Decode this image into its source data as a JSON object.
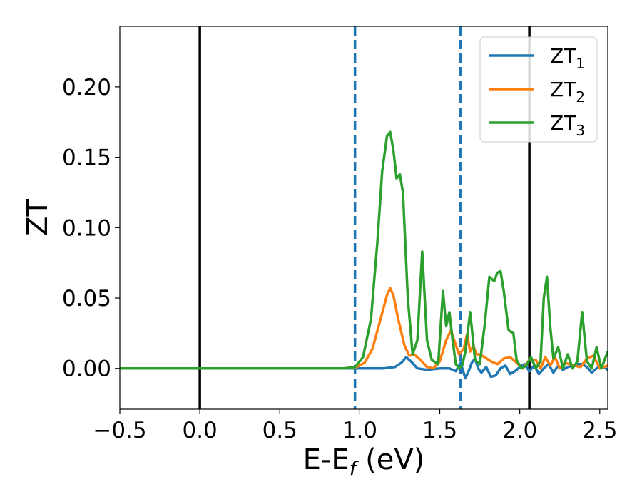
{
  "chart_data": {
    "type": "line",
    "xlabel": "E-E",
    "xlabel_subscript": "f",
    "xlabel_suffix": " (eV)",
    "ylabel": "ZT",
    "xlim": [
      -0.5,
      2.55
    ],
    "ylim": [
      -0.029,
      0.243
    ],
    "xticks": [
      -0.5,
      0.0,
      0.5,
      1.0,
      1.5,
      2.0,
      2.5
    ],
    "xtick_labels": [
      "−0.5",
      "0.0",
      "0.5",
      "1.0",
      "1.5",
      "2.0",
      "2.5"
    ],
    "yticks": [
      0.0,
      0.05,
      0.1,
      0.15,
      0.2
    ],
    "ytick_labels": [
      "0.00",
      "0.05",
      "0.10",
      "0.15",
      "0.20"
    ],
    "grid": false,
    "legend_position": "top-right",
    "vertical_lines": [
      {
        "x": 0.0,
        "style": "solid",
        "color": "#000000"
      },
      {
        "x": 2.06,
        "style": "solid",
        "color": "#000000"
      },
      {
        "x": 0.97,
        "style": "dashed",
        "color": "#1f77b4"
      },
      {
        "x": 1.63,
        "style": "dashed",
        "color": "#1f77b4"
      }
    ],
    "series": [
      {
        "name": "ZT",
        "subscript": "1",
        "color": "#1f77b4",
        "x": [
          -0.5,
          0.9,
          1.15,
          1.22,
          1.26,
          1.29,
          1.32,
          1.36,
          1.42,
          1.5,
          1.56,
          1.6,
          1.63,
          1.66,
          1.68,
          1.7,
          1.72,
          1.74,
          1.76,
          1.79,
          1.82,
          1.85,
          1.88,
          1.91,
          1.94,
          1.97,
          2.0,
          2.03,
          2.06,
          2.09,
          2.12,
          2.15,
          2.18,
          2.21,
          2.24,
          2.27,
          2.3,
          2.33,
          2.36,
          2.39,
          2.42,
          2.45,
          2.48,
          2.51,
          2.55
        ],
        "y": [
          0.0,
          0.0,
          0.0,
          0.001,
          0.004,
          0.008,
          0.005,
          0.0,
          -0.001,
          0.0,
          0.0,
          -0.002,
          0.004,
          -0.007,
          -0.002,
          0.004,
          0.007,
          0.0,
          -0.003,
          0.001,
          -0.006,
          -0.005,
          0.0,
          0.002,
          -0.004,
          -0.002,
          0.001,
          0.003,
          -0.002,
          0.002,
          -0.004,
          0.0,
          0.003,
          -0.003,
          0.002,
          -0.001,
          0.001,
          0.002,
          0.003,
          0.003,
          0.001,
          -0.003,
          0.0,
          0.002,
          -0.001
        ]
      },
      {
        "name": "ZT",
        "subscript": "2",
        "color": "#ff7f0e",
        "x": [
          -0.5,
          0.9,
          0.98,
          1.03,
          1.08,
          1.13,
          1.17,
          1.19,
          1.21,
          1.24,
          1.28,
          1.31,
          1.34,
          1.38,
          1.42,
          1.46,
          1.5,
          1.54,
          1.57,
          1.59,
          1.62,
          1.65,
          1.67,
          1.69,
          1.71,
          1.73,
          1.75,
          1.78,
          1.82,
          1.86,
          1.9,
          1.94,
          1.98,
          2.02,
          2.06,
          2.1,
          2.13,
          2.16,
          2.19,
          2.22,
          2.25,
          2.28,
          2.31,
          2.34,
          2.38,
          2.42,
          2.46,
          2.5,
          2.55
        ],
        "y": [
          0.0,
          0.0,
          0.001,
          0.004,
          0.014,
          0.035,
          0.052,
          0.057,
          0.052,
          0.035,
          0.016,
          0.009,
          0.01,
          0.006,
          0.001,
          0.0,
          0.005,
          0.02,
          0.027,
          0.02,
          0.01,
          0.014,
          0.024,
          0.012,
          0.016,
          0.01,
          0.01,
          0.008,
          0.005,
          0.003,
          0.007,
          0.008,
          0.004,
          0.0,
          0.006,
          0.006,
          0.0,
          0.008,
          0.002,
          0.008,
          0.0,
          0.004,
          0.003,
          0.002,
          0.001,
          0.007,
          0.009,
          0.0,
          0.002
        ]
      },
      {
        "name": "ZT",
        "subscript": "3",
        "color": "#2ca02c",
        "x": [
          -0.5,
          0.9,
          0.97,
          1.02,
          1.07,
          1.11,
          1.14,
          1.17,
          1.19,
          1.21,
          1.23,
          1.25,
          1.27,
          1.3,
          1.33,
          1.36,
          1.39,
          1.42,
          1.45,
          1.49,
          1.52,
          1.54,
          1.56,
          1.58,
          1.6,
          1.62,
          1.64,
          1.66,
          1.69,
          1.72,
          1.75,
          1.78,
          1.81,
          1.84,
          1.86,
          1.88,
          1.9,
          1.93,
          1.96,
          1.98,
          2.01,
          2.04,
          2.07,
          2.1,
          2.13,
          2.15,
          2.17,
          2.19,
          2.21,
          2.24,
          2.27,
          2.3,
          2.33,
          2.36,
          2.39,
          2.42,
          2.45,
          2.48,
          2.51,
          2.55
        ],
        "y": [
          0.0,
          0.0,
          0.001,
          0.008,
          0.035,
          0.09,
          0.14,
          0.165,
          0.168,
          0.155,
          0.135,
          0.138,
          0.125,
          0.05,
          0.01,
          0.02,
          0.083,
          0.02,
          0.006,
          0.003,
          0.055,
          0.03,
          0.04,
          0.02,
          0.003,
          0.0,
          0.002,
          0.012,
          0.04,
          0.006,
          0.003,
          0.03,
          0.065,
          0.062,
          0.068,
          0.069,
          0.055,
          0.027,
          0.025,
          0.006,
          0.0,
          0.002,
          0.008,
          0.0,
          0.005,
          0.05,
          0.065,
          0.03,
          0.007,
          0.015,
          0.0,
          0.01,
          0.0,
          0.005,
          0.04,
          0.005,
          0.0,
          0.015,
          0.0,
          0.012
        ]
      }
    ]
  }
}
